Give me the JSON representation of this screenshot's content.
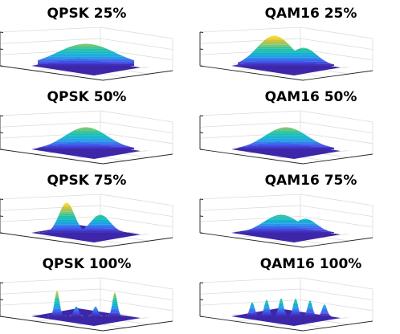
{
  "figure": {
    "background": "#ffffff"
  },
  "colormap": {
    "name": "parula",
    "stops": [
      "#3e26a8",
      "#4657f2",
      "#1f9ae6",
      "#0db8c9",
      "#2cc29a",
      "#8ec86a",
      "#dfc035",
      "#f9e928"
    ]
  },
  "chart_data": [
    {
      "type": "surface",
      "title": "QPSK 25%",
      "grid": true,
      "peaks": [
        {
          "x": 0.0,
          "y": 0.0,
          "height": 0.55,
          "width": 0.3
        }
      ]
    },
    {
      "type": "surface",
      "title": "QAM16 25%",
      "grid": true,
      "peaks": [
        {
          "x": -0.12,
          "y": 0.0,
          "height": 0.75,
          "width": 0.18
        },
        {
          "x": 0.18,
          "y": 0.0,
          "height": 0.45,
          "width": 0.14
        }
      ]
    },
    {
      "type": "surface",
      "title": "QPSK 50%",
      "grid": true,
      "peaks": [
        {
          "x": 0.0,
          "y": 0.0,
          "height": 0.55,
          "width": 0.22
        }
      ]
    },
    {
      "type": "surface",
      "title": "QAM16 50%",
      "grid": true,
      "peaks": [
        {
          "x": 0.0,
          "y": 0.0,
          "height": 0.55,
          "width": 0.22
        }
      ]
    },
    {
      "type": "surface",
      "title": "QPSK 75%",
      "grid": true,
      "peaks": [
        {
          "x": -0.2,
          "y": 0.0,
          "height": 0.75,
          "width": 0.08
        },
        {
          "x": 0.15,
          "y": 0.0,
          "height": 0.45,
          "width": 0.1
        }
      ]
    },
    {
      "type": "surface",
      "title": "QAM16 75%",
      "grid": true,
      "peaks": [
        {
          "x": -0.05,
          "y": 0.0,
          "height": 0.45,
          "width": 0.18
        },
        {
          "x": 0.2,
          "y": 0.0,
          "height": 0.35,
          "width": 0.12
        }
      ]
    },
    {
      "type": "surface",
      "title": "QPSK 100%",
      "grid": true,
      "peaks": [
        {
          "x": -0.3,
          "y": 0.0,
          "height": 0.65,
          "width": 0.025
        },
        {
          "x": -0.1,
          "y": 0.0,
          "height": 0.25,
          "width": 0.025
        },
        {
          "x": 0.1,
          "y": 0.0,
          "height": 0.25,
          "width": 0.025
        },
        {
          "x": 0.3,
          "y": 0.0,
          "height": 0.6,
          "width": 0.025
        }
      ]
    },
    {
      "type": "surface",
      "title": "QAM16 100%",
      "grid": true,
      "peaks": [
        {
          "x": -0.35,
          "y": 0.0,
          "height": 0.35,
          "width": 0.025
        },
        {
          "x": -0.2,
          "y": 0.0,
          "height": 0.42,
          "width": 0.025
        },
        {
          "x": -0.05,
          "y": 0.0,
          "height": 0.45,
          "width": 0.025
        },
        {
          "x": 0.1,
          "y": 0.0,
          "height": 0.45,
          "width": 0.025
        },
        {
          "x": 0.25,
          "y": 0.0,
          "height": 0.4,
          "width": 0.025
        },
        {
          "x": 0.4,
          "y": 0.0,
          "height": 0.3,
          "width": 0.025
        }
      ]
    }
  ]
}
